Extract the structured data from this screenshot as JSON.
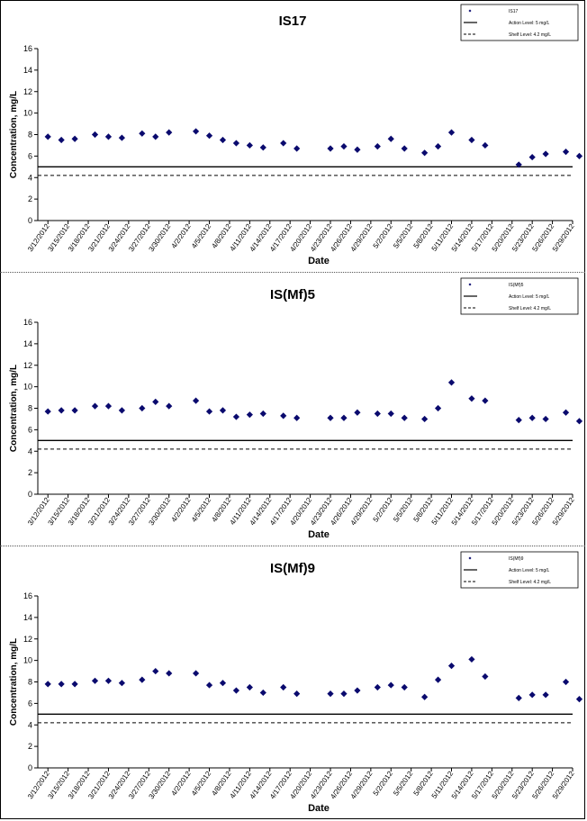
{
  "chart_data": [
    {
      "type": "scatter",
      "title": "IS17",
      "xlabel": "Date",
      "ylabel": "Concentration, mg/L",
      "ylim": [
        0,
        16
      ],
      "yticks": [
        0,
        2,
        4,
        6,
        8,
        10,
        12,
        14,
        16
      ],
      "xtick_labels": [
        "3/12/2012",
        "3/15/2012",
        "3/18/2012",
        "3/21/2012",
        "3/24/2012",
        "3/27/2012",
        "3/30/2012",
        "4/2/2012",
        "4/5/2012",
        "4/8/2012",
        "4/11/2012",
        "4/14/2012",
        "4/17/2012",
        "4/20/2012",
        "4/23/2012",
        "4/26/2012",
        "4/29/2012",
        "5/2/2012",
        "5/5/2012",
        "5/8/2012",
        "5/11/2012",
        "5/14/2012",
        "5/17/2012",
        "5/20/2012",
        "5/23/2012",
        "5/26/2012",
        "5/29/2012"
      ],
      "grid": false,
      "legend_position": "top-right",
      "legend": [
        "IS17",
        "Action Level: 5 mg/L",
        "Shelf Level: 4.2 mg/L"
      ],
      "series": [
        {
          "name": "IS17",
          "x": [
            "3/12/2012",
            "3/14/2012",
            "3/16/2012",
            "3/19/2012",
            "3/21/2012",
            "3/23/2012",
            "3/26/2012",
            "3/28/2012",
            "3/30/2012",
            "4/3/2012",
            "4/5/2012",
            "4/7/2012",
            "4/9/2012",
            "4/11/2012",
            "4/13/2012",
            "4/16/2012",
            "4/18/2012",
            "4/23/2012",
            "4/25/2012",
            "4/27/2012",
            "4/30/2012",
            "5/2/2012",
            "5/4/2012",
            "5/7/2012",
            "5/9/2012",
            "5/11/2012",
            "5/14/2012",
            "5/16/2012",
            "5/21/2012",
            "5/23/2012",
            "5/25/2012",
            "5/28/2012",
            "5/30/2012"
          ],
          "y": [
            7.8,
            7.5,
            7.6,
            8.0,
            7.8,
            7.7,
            8.1,
            7.8,
            8.2,
            8.3,
            7.9,
            7.5,
            7.2,
            7.0,
            6.8,
            7.2,
            6.7,
            6.7,
            6.9,
            6.6,
            6.9,
            7.6,
            6.7,
            6.3,
            6.9,
            8.2,
            7.5,
            7.0,
            5.2,
            5.9,
            6.2,
            6.4,
            6.0
          ]
        },
        {
          "name": "Action Level: 5 mg/L",
          "y": 5
        },
        {
          "name": "Shelf Level: 4.2 mg/L",
          "y": 4.2
        }
      ]
    },
    {
      "type": "scatter",
      "title": "IS(Mf)5",
      "xlabel": "Date",
      "ylabel": "Concentration, mg/L",
      "ylim": [
        0,
        16
      ],
      "yticks": [
        0,
        2,
        4,
        6,
        8,
        10,
        12,
        14,
        16
      ],
      "xtick_labels": [
        "3/12/2012",
        "3/15/2012",
        "3/18/2012",
        "3/21/2012",
        "3/24/2012",
        "3/27/2012",
        "3/30/2012",
        "4/2/2012",
        "4/5/2012",
        "4/8/2012",
        "4/11/2012",
        "4/14/2012",
        "4/17/2012",
        "4/20/2012",
        "4/23/2012",
        "4/26/2012",
        "4/29/2012",
        "5/2/2012",
        "5/5/2012",
        "5/8/2012",
        "5/11/2012",
        "5/14/2012",
        "5/17/2012",
        "5/20/2012",
        "5/23/2012",
        "5/26/2012",
        "5/29/2012"
      ],
      "grid": false,
      "legend_position": "top-right",
      "legend": [
        "IS(Mf)5",
        "Action Level: 5 mg/L",
        "Shelf Level: 4.2 mg/L"
      ],
      "series": [
        {
          "name": "IS(Mf)5",
          "x": [
            "3/12/2012",
            "3/14/2012",
            "3/16/2012",
            "3/19/2012",
            "3/21/2012",
            "3/23/2012",
            "3/26/2012",
            "3/28/2012",
            "3/30/2012",
            "4/3/2012",
            "4/5/2012",
            "4/7/2012",
            "4/9/2012",
            "4/11/2012",
            "4/13/2012",
            "4/16/2012",
            "4/18/2012",
            "4/23/2012",
            "4/25/2012",
            "4/27/2012",
            "4/30/2012",
            "5/2/2012",
            "5/4/2012",
            "5/7/2012",
            "5/9/2012",
            "5/11/2012",
            "5/14/2012",
            "5/16/2012",
            "5/21/2012",
            "5/23/2012",
            "5/25/2012",
            "5/28/2012",
            "5/30/2012"
          ],
          "y": [
            7.7,
            7.8,
            7.8,
            8.2,
            8.2,
            7.8,
            8.0,
            8.6,
            8.2,
            8.7,
            7.7,
            7.8,
            7.2,
            7.4,
            7.5,
            7.3,
            7.1,
            7.1,
            7.1,
            7.6,
            7.5,
            7.5,
            7.1,
            7.0,
            8.0,
            10.4,
            8.9,
            8.7,
            6.9,
            7.1,
            7.0,
            7.6,
            6.8
          ]
        },
        {
          "name": "Action Level: 5 mg/L",
          "y": 5
        },
        {
          "name": "Shelf Level: 4.2 mg/L",
          "y": 4.2
        }
      ]
    },
    {
      "type": "scatter",
      "title": "IS(Mf)9",
      "xlabel": "Date",
      "ylabel": "Concentration, mg/L",
      "ylim": [
        0,
        16
      ],
      "yticks": [
        0,
        2,
        4,
        6,
        8,
        10,
        12,
        14,
        16
      ],
      "xtick_labels": [
        "3/12/2012",
        "3/15/2012",
        "3/18/2012",
        "3/21/2012",
        "3/24/2012",
        "3/27/2012",
        "3/30/2012",
        "4/2/2012",
        "4/5/2012",
        "4/8/2012",
        "4/11/2012",
        "4/14/2012",
        "4/17/2012",
        "4/20/2012",
        "4/23/2012",
        "4/26/2012",
        "4/29/2012",
        "5/2/2012",
        "5/5/2012",
        "5/8/2012",
        "5/11/2012",
        "5/14/2012",
        "5/17/2012",
        "5/20/2012",
        "5/23/2012",
        "5/26/2012",
        "5/29/2012"
      ],
      "grid": false,
      "legend_position": "top-right",
      "legend": [
        "IS(Mf)9",
        "Action Level: 5 mg/L",
        "Shelf Level: 4.2 mg/L"
      ],
      "series": [
        {
          "name": "IS(Mf)9",
          "x": [
            "3/12/2012",
            "3/14/2012",
            "3/16/2012",
            "3/19/2012",
            "3/21/2012",
            "3/23/2012",
            "3/26/2012",
            "3/28/2012",
            "3/30/2012",
            "4/3/2012",
            "4/5/2012",
            "4/7/2012",
            "4/9/2012",
            "4/11/2012",
            "4/13/2012",
            "4/16/2012",
            "4/18/2012",
            "4/23/2012",
            "4/25/2012",
            "4/27/2012",
            "4/30/2012",
            "5/2/2012",
            "5/4/2012",
            "5/7/2012",
            "5/9/2012",
            "5/11/2012",
            "5/14/2012",
            "5/16/2012",
            "5/21/2012",
            "5/23/2012",
            "5/25/2012",
            "5/28/2012",
            "5/30/2012"
          ],
          "y": [
            7.8,
            7.8,
            7.8,
            8.1,
            8.1,
            7.9,
            8.2,
            9.0,
            8.8,
            8.8,
            7.7,
            7.9,
            7.2,
            7.5,
            7.0,
            7.5,
            6.9,
            6.9,
            6.9,
            7.2,
            7.5,
            7.7,
            7.5,
            6.6,
            8.2,
            9.5,
            10.1,
            8.5,
            6.5,
            6.8,
            6.8,
            8.0,
            6.4
          ]
        },
        {
          "name": "Action Level: 5 mg/L",
          "y": 5
        },
        {
          "name": "Shelf Level: 4.2 mg/L",
          "y": 4.2
        }
      ]
    }
  ]
}
